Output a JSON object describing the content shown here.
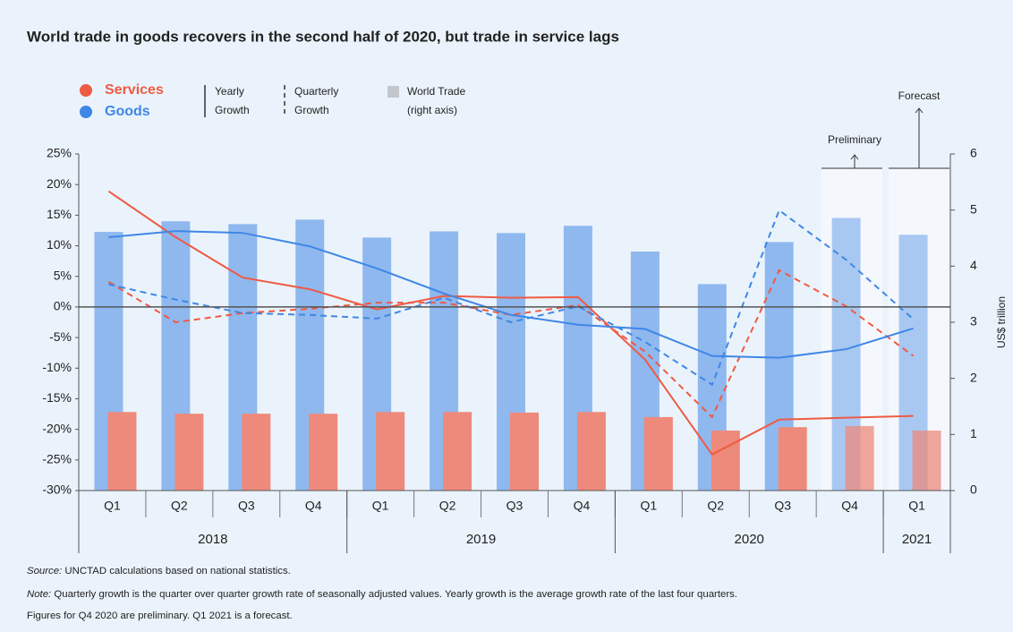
{
  "chart_data": {
    "type": "bar-line",
    "title": "World trade in goods recovers in the second half of 2020, but trade in service lags",
    "groups": [
      {
        "name": "2018",
        "categories": [
          "Q1",
          "Q2",
          "Q3",
          "Q4"
        ]
      },
      {
        "name": "2019",
        "categories": [
          "Q1",
          "Q2",
          "Q3",
          "Q4"
        ]
      },
      {
        "name": "2020",
        "categories": [
          "Q1",
          "Q2",
          "Q3",
          "Q4"
        ]
      },
      {
        "name": "2021",
        "categories": [
          "Q1"
        ]
      }
    ],
    "series": [
      {
        "name": "Services",
        "color": "#ef5a43",
        "bar_color": "#ee8a7b",
        "yearly_growth": [
          18.9,
          11.4,
          4.8,
          2.9,
          -0.4,
          1.8,
          1.5,
          1.6,
          -8.6,
          -24.1,
          -18.4,
          -18.1,
          -17.8
        ],
        "quarterly_growth": [
          4.1,
          -2.5,
          -1.0,
          -0.3,
          0.7,
          0.7,
          -1.3,
          0.3,
          -7.3,
          -18.0,
          6.0,
          0.1,
          -8.0
        ],
        "world_trade": [
          1.4,
          1.37,
          1.37,
          1.37,
          1.4,
          1.4,
          1.39,
          1.4,
          1.31,
          1.07,
          1.13,
          1.15,
          1.07
        ]
      },
      {
        "name": "Goods",
        "color": "#3f87e6",
        "bar_color": "#8fb8ef",
        "yearly_growth": [
          11.4,
          12.4,
          12.1,
          9.9,
          6.3,
          2.2,
          -1.3,
          -2.9,
          -3.6,
          -8.0,
          -8.3,
          -6.9,
          -3.5
        ],
        "quarterly_growth": [
          3.7,
          1.2,
          -1.0,
          -1.3,
          -1.9,
          1.5,
          -2.5,
          0.1,
          -5.7,
          -12.7,
          15.8,
          7.7,
          -2.0
        ],
        "world_trade": [
          4.61,
          4.8,
          4.75,
          4.83,
          4.51,
          4.62,
          4.59,
          4.72,
          4.26,
          3.68,
          4.43,
          4.86,
          4.56
        ]
      }
    ],
    "legend_yearly": [
      "Yearly",
      "Growth"
    ],
    "legend_quarterly": [
      "Quarterly",
      "Growth"
    ],
    "legend_trade": [
      "World Trade",
      "(right axis)"
    ],
    "y2_label": "US$ trillion",
    "preliminary_label": "Preliminary",
    "forecast_label": "Forecast",
    "ylim": [
      -30,
      25
    ],
    "yticks": [
      {
        "value": -30,
        "label": "-30%"
      },
      {
        "value": -25,
        "label": "-25%"
      },
      {
        "value": -20,
        "label": "-20%"
      },
      {
        "value": -15,
        "label": "-15%"
      },
      {
        "value": -10,
        "label": "-10%"
      },
      {
        "value": -5,
        "label": "-5%"
      },
      {
        "value": 0,
        "label": "0%"
      },
      {
        "value": 5,
        "label": "5%"
      },
      {
        "value": 10,
        "label": "10%"
      },
      {
        "value": 15,
        "label": "15%"
      },
      {
        "value": 20,
        "label": "20%"
      },
      {
        "value": 25,
        "label": "25%"
      }
    ],
    "y2lim": [
      0,
      6
    ],
    "y2ticks": [
      0,
      1,
      2,
      3,
      4,
      5,
      6
    ],
    "source_label": "Source:",
    "source_text": " UNCTAD calculations based on national statistics.",
    "note_label": "Note:",
    "note_text": " Quarterly growth is the quarter over quarter growth rate of seasonally adjusted values. Yearly growth is the average growth rate of the last four quarters.",
    "note_text_2": "Figures for Q4 2020 are preliminary. Q1 2021 is a forecast."
  }
}
